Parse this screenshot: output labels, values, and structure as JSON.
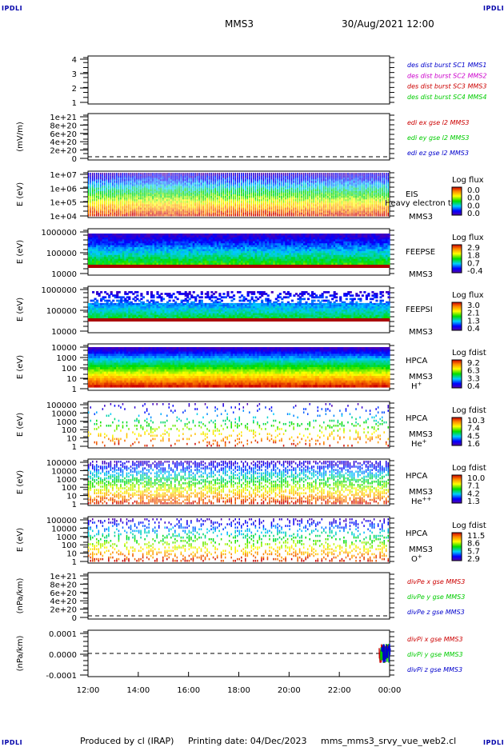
{
  "corners": {
    "tl": "IPDLI",
    "tr": "IPDLI",
    "bl": "IPDLI",
    "br": "IPDLI"
  },
  "header": {
    "spacecraft": "MMS3",
    "datetime": "30/Aug/2021 12:00"
  },
  "footer": {
    "produced": "Produced by cl (IRAP)",
    "printed": "Printing date: 04/Dec/2023",
    "script": "mms_mms3_srvy_vue_web2.cl"
  },
  "colors": {
    "red": "#cc0000",
    "green": "#00cc00",
    "blue": "#0000cc",
    "magenta": "#cc00cc",
    "axis": "#000000"
  },
  "chart_data": {
    "type": "heatmap",
    "x_ticks": [
      "12:00",
      "14:00",
      "16:00",
      "18:00",
      "20:00",
      "22:00",
      "00:00"
    ],
    "panels": [
      {
        "kind": "empty",
        "ylabel": "",
        "ticks": [
          "4",
          "3",
          "2",
          "1"
        ],
        "legend": [
          {
            "text": "des dist burst SC1 MMS1",
            "color": "#0000cc"
          },
          {
            "text": "des dist burst SC2 MMS2",
            "color": "#cc00cc"
          },
          {
            "text": "des dist burst SC3 MMS3",
            "color": "#cc0000"
          },
          {
            "text": "des dist burst SC4 MMS4",
            "color": "#00cc00"
          }
        ]
      },
      {
        "kind": "empty",
        "ylabel": "(mV/m)",
        "ticks": [
          "1e+21",
          "8e+20",
          "6e+20",
          "4e+20",
          "2e+20",
          "0"
        ],
        "zero_line": true,
        "legend": [
          {
            "text": "edi ex gse l2 MMS3",
            "color": "#cc0000"
          },
          {
            "text": "edi ey gse l2 MMS3",
            "color": "#00cc00"
          },
          {
            "text": "edi ez gse l2 MMS3",
            "color": "#0000cc"
          }
        ]
      },
      {
        "kind": "spectro",
        "ylabel": "E (eV)",
        "ticks": [
          "1e+07",
          "1e+06",
          "1e+05",
          "1e+04"
        ],
        "fill": "none",
        "labels": [
          "EIS",
          "MMS3"
        ],
        "overlay": "Heavy electron to",
        "cb_title": "Log flux",
        "cb_ticks": [
          "0.0",
          "0.0",
          "0.0",
          "0.0"
        ]
      },
      {
        "kind": "spectro",
        "ylabel": "E (eV)",
        "ticks": [
          "1000000",
          "100000",
          "10000"
        ],
        "fill": "feepse",
        "labels": [
          "FEEPSE",
          "MMS3"
        ],
        "cb_title": "Log flux",
        "cb_ticks": [
          "2.9",
          "1.8",
          "0.7",
          "-0.4"
        ]
      },
      {
        "kind": "spectro",
        "ylabel": "E (eV)",
        "ticks": [
          "1000000",
          "100000",
          "10000"
        ],
        "fill": "feepsi",
        "labels": [
          "FEEPSI",
          "MMS3"
        ],
        "cb_title": "Log flux",
        "cb_ticks": [
          "3.0",
          "2.1",
          "1.3",
          "0.4"
        ]
      },
      {
        "kind": "spectro",
        "ylabel": "E (eV)",
        "ticks": [
          "10000",
          "1000",
          "100",
          "10",
          "1"
        ],
        "fill": "hpca_h",
        "labels": [
          "HPCA",
          "MMS3"
        ],
        "species": "H",
        "species_sup": "+",
        "cb_title": "Log fdist",
        "cb_ticks": [
          "9.2",
          "6.3",
          "3.3",
          "0.4"
        ]
      },
      {
        "kind": "spectro",
        "ylabel": "E (eV)",
        "ticks": [
          "100000",
          "10000",
          "1000",
          "100",
          "10",
          "1"
        ],
        "fill": "hpca_he",
        "labels": [
          "HPCA",
          "MMS3"
        ],
        "species": "He",
        "species_sup": "+",
        "cb_title": "Log fdist",
        "cb_ticks": [
          "10.3",
          "7.4",
          "4.5",
          "1.6"
        ]
      },
      {
        "kind": "spectro",
        "ylabel": "E (eV)",
        "ticks": [
          "100000",
          "10000",
          "1000",
          "100",
          "10",
          "1"
        ],
        "fill": "hpca_hepp",
        "labels": [
          "HPCA",
          "MMS3"
        ],
        "species": "He",
        "species_sup": "++",
        "cb_title": "Log fdist",
        "cb_ticks": [
          "10.0",
          "7.1",
          "4.2",
          "1.3"
        ]
      },
      {
        "kind": "spectro",
        "ylabel": "E (eV)",
        "ticks": [
          "100000",
          "10000",
          "1000",
          "100",
          "10",
          "1"
        ],
        "fill": "hpca_o",
        "labels": [
          "HPCA",
          "MMS3"
        ],
        "species": "O",
        "species_sup": "+",
        "cb_title": "Log fdist",
        "cb_ticks": [
          "11.5",
          "8.6",
          "5.7",
          "2.9"
        ]
      },
      {
        "kind": "empty",
        "ylabel": "(nPa/km)",
        "ticks": [
          "1e+21",
          "8e+20",
          "6e+20",
          "4e+20",
          "2e+20",
          "0"
        ],
        "zero_line": true,
        "legend": [
          {
            "text": "divPe x gse MMS3",
            "color": "#cc0000"
          },
          {
            "text": "divPe y gse MMS3",
            "color": "#00cc00"
          },
          {
            "text": "divPe z gse MMS3",
            "color": "#0000cc"
          }
        ]
      },
      {
        "kind": "line",
        "ylabel": "(nPa/km)",
        "ticks": [
          "0.0001",
          "0.0000",
          "-0.0001"
        ],
        "zero_line": true,
        "legend": [
          {
            "text": "divPi x gse MMS3",
            "color": "#cc0000"
          },
          {
            "text": "divPi y gse MMS3",
            "color": "#00cc00"
          },
          {
            "text": "divPi z gse MMS3",
            "color": "#0000cc"
          }
        ]
      }
    ]
  }
}
